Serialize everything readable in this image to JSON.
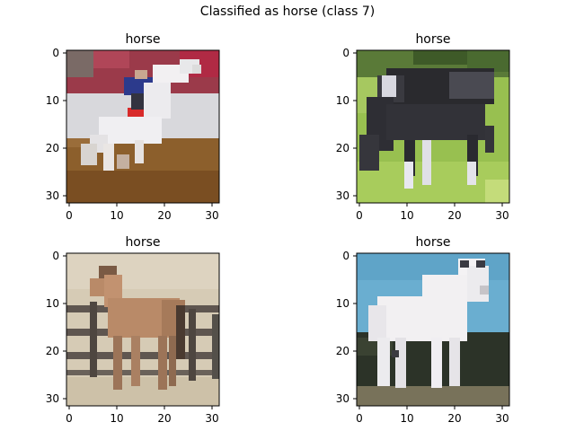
{
  "figure": {
    "suptitle": "Classified as horse (class 7)"
  },
  "panels": [
    {
      "title": "horse",
      "description": "Pixelated photo of a rider on a white rearing horse in an arena with dirt floor",
      "x_ticks": [
        "0",
        "10",
        "20",
        "30"
      ],
      "y_ticks": [
        "0",
        "10",
        "20",
        "30"
      ]
    },
    {
      "title": "horse",
      "description": "Pixelated photo of a dark horse with white legs grazing on green grass",
      "x_ticks": [
        "0",
        "10",
        "20",
        "30"
      ],
      "y_ticks": [
        "0",
        "10",
        "20",
        "30"
      ]
    },
    {
      "title": "horse",
      "description": "Pixelated photo of a light brown horse standing beside a wooden fence",
      "x_ticks": [
        "0",
        "10",
        "20",
        "30"
      ],
      "y_ticks": [
        "0",
        "10",
        "20",
        "30"
      ]
    },
    {
      "title": "horse",
      "description": "Pixelated photo of a white horse standing in front of dark trees under a blue sky",
      "x_ticks": [
        "0",
        "10",
        "20",
        "30"
      ],
      "y_ticks": [
        "0",
        "10",
        "20",
        "30"
      ]
    }
  ],
  "colors": {
    "arena_red": "#a8283a",
    "arena_wall": "#d8d8dc",
    "arena_dirt": "#8c5f2c",
    "grass": "#98c050",
    "horse_dark": "#2a2a2e",
    "tan_background": "#d6cbb5",
    "horse_brown": "#b98a68",
    "fence": "#5f5650",
    "sky": "#6aaed0",
    "trees": "#2c3328",
    "horse_white": "#f2f0f2"
  }
}
